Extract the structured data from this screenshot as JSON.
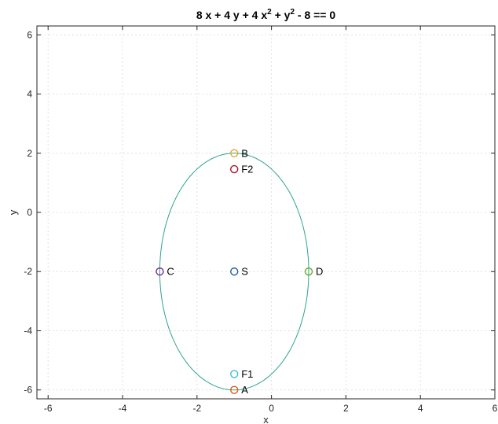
{
  "chart_data": {
    "type": "scatter",
    "title": {
      "parts": [
        "8 x + 4 y + 4 x",
        "2",
        " + y",
        "2",
        " - 8 == 0"
      ]
    },
    "xlabel": "x",
    "ylabel": "y",
    "xlim": [
      -6.3,
      6
    ],
    "ylim": [
      -6.3,
      6.3
    ],
    "xticks": [
      -6,
      -4,
      -2,
      0,
      2,
      4,
      6
    ],
    "xtick_labels": [
      "-6",
      "-4",
      "-2",
      "0",
      "2",
      "4",
      "6"
    ],
    "yticks": [
      -6,
      -4,
      -2,
      0,
      2,
      4,
      6
    ],
    "ytick_labels": [
      "-6",
      "-4",
      "-2",
      "0",
      "2",
      "4",
      "6"
    ],
    "grid": true,
    "curve": {
      "equation": "8 x + 4 y + 4 x^2 + y^2 - 8 == 0",
      "center": [
        -1,
        -2
      ],
      "semi_axis_x": 2,
      "semi_axis_y": 4,
      "color": "#2ca58d"
    },
    "points": [
      {
        "label": "B",
        "x": -1,
        "y": 2,
        "color": "#e0a93b"
      },
      {
        "label": "F2",
        "x": -1,
        "y": 1.46,
        "color": "#a8162b"
      },
      {
        "label": "C",
        "x": -3,
        "y": -2,
        "color": "#7b2d8b"
      },
      {
        "label": "S",
        "x": -1,
        "y": -2,
        "color": "#1f5fa8"
      },
      {
        "label": "D",
        "x": 1,
        "y": -2,
        "color": "#6aa92e"
      },
      {
        "label": "F1",
        "x": -1,
        "y": -5.46,
        "color": "#3dbfd9"
      },
      {
        "label": "A",
        "x": -1,
        "y": -6,
        "color": "#d95a1a"
      }
    ]
  }
}
